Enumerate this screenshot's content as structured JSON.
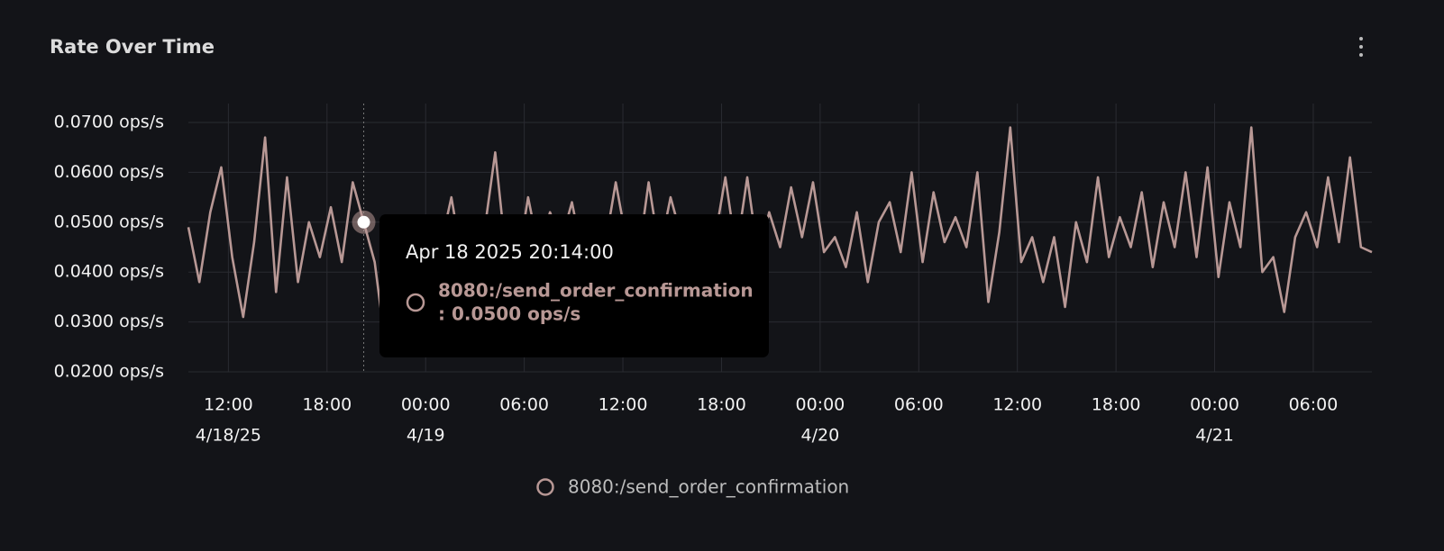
{
  "chart_data": {
    "type": "line",
    "title": "Rate Over Time",
    "x": [
      "2025-04-18T09:34",
      "2025-04-18T10:14",
      "2025-04-18T10:54",
      "2025-04-18T11:34",
      "2025-04-18T12:14",
      "2025-04-18T12:54",
      "2025-04-18T13:34",
      "2025-04-18T14:14",
      "2025-04-18T14:54",
      "2025-04-18T15:34",
      "2025-04-18T16:14",
      "2025-04-18T16:54",
      "2025-04-18T17:34",
      "2025-04-18T18:14",
      "2025-04-18T18:54",
      "2025-04-18T19:34",
      "2025-04-18T20:14",
      "2025-04-18T20:54",
      "2025-04-18T21:34",
      "2025-04-18T22:14",
      "2025-04-18T22:54",
      "2025-04-18T23:34",
      "2025-04-19T00:14",
      "2025-04-19T00:54",
      "2025-04-19T01:34",
      "2025-04-19T02:14",
      "2025-04-19T02:54",
      "2025-04-19T03:34",
      "2025-04-19T04:14",
      "2025-04-19T04:54",
      "2025-04-19T05:34",
      "2025-04-19T06:14",
      "2025-04-19T06:54",
      "2025-04-19T07:34",
      "2025-04-19T08:14",
      "2025-04-19T08:54",
      "2025-04-19T09:34",
      "2025-04-19T10:14",
      "2025-04-19T10:54",
      "2025-04-19T11:34",
      "2025-04-19T12:14",
      "2025-04-19T12:54",
      "2025-04-19T13:34",
      "2025-04-19T14:14",
      "2025-04-19T14:54",
      "2025-04-19T15:34",
      "2025-04-19T16:14",
      "2025-04-19T16:54",
      "2025-04-19T17:34",
      "2025-04-19T18:14",
      "2025-04-19T18:54",
      "2025-04-19T19:34",
      "2025-04-19T20:14",
      "2025-04-19T20:54",
      "2025-04-19T21:34",
      "2025-04-19T22:14",
      "2025-04-19T22:54",
      "2025-04-19T23:34",
      "2025-04-20T00:14",
      "2025-04-20T00:54",
      "2025-04-20T01:34",
      "2025-04-20T02:14",
      "2025-04-20T02:54",
      "2025-04-20T03:34",
      "2025-04-20T04:14",
      "2025-04-20T04:54",
      "2025-04-20T05:34",
      "2025-04-20T06:14",
      "2025-04-20T06:54",
      "2025-04-20T07:34",
      "2025-04-20T08:14",
      "2025-04-20T08:54",
      "2025-04-20T09:34",
      "2025-04-20T10:14",
      "2025-04-20T10:54",
      "2025-04-20T11:34",
      "2025-04-20T12:14",
      "2025-04-20T12:54",
      "2025-04-20T13:34",
      "2025-04-20T14:14",
      "2025-04-20T14:54",
      "2025-04-20T15:34",
      "2025-04-20T16:14",
      "2025-04-20T16:54",
      "2025-04-20T17:34",
      "2025-04-20T18:14",
      "2025-04-20T18:54",
      "2025-04-20T19:34",
      "2025-04-20T20:14",
      "2025-04-20T20:54",
      "2025-04-20T21:34",
      "2025-04-20T22:14",
      "2025-04-20T22:54",
      "2025-04-20T23:34",
      "2025-04-21T00:14",
      "2025-04-21T00:54",
      "2025-04-21T01:34",
      "2025-04-21T02:14",
      "2025-04-21T02:54",
      "2025-04-21T03:34",
      "2025-04-21T04:14",
      "2025-04-21T04:54",
      "2025-04-21T05:34",
      "2025-04-21T06:14",
      "2025-04-21T06:54",
      "2025-04-21T07:34",
      "2025-04-21T08:14",
      "2025-04-21T08:54",
      "2025-04-21T09:34"
    ],
    "series": [
      {
        "name": "8080:/send_order_confirmation",
        "color": "#b89895",
        "values": [
          0.049,
          0.038,
          0.052,
          0.061,
          0.043,
          0.031,
          0.046,
          0.067,
          0.036,
          0.059,
          0.038,
          0.05,
          0.043,
          0.053,
          0.042,
          0.058,
          0.05,
          0.042,
          0.025,
          0.043,
          0.047,
          0.04,
          0.048,
          0.045,
          0.055,
          0.042,
          0.038,
          0.048,
          0.064,
          0.043,
          0.041,
          0.055,
          0.044,
          0.052,
          0.046,
          0.054,
          0.043,
          0.047,
          0.045,
          0.058,
          0.046,
          0.042,
          0.058,
          0.044,
          0.055,
          0.047,
          0.043,
          0.05,
          0.046,
          0.059,
          0.044,
          0.059,
          0.043,
          0.052,
          0.045,
          0.057,
          0.047,
          0.058,
          0.044,
          0.047,
          0.041,
          0.052,
          0.038,
          0.05,
          0.054,
          0.044,
          0.06,
          0.042,
          0.056,
          0.046,
          0.051,
          0.045,
          0.06,
          0.034,
          0.048,
          0.069,
          0.042,
          0.047,
          0.038,
          0.047,
          0.033,
          0.05,
          0.042,
          0.059,
          0.043,
          0.051,
          0.045,
          0.056,
          0.041,
          0.054,
          0.045,
          0.06,
          0.043,
          0.061,
          0.039,
          0.054,
          0.045,
          0.069,
          0.04,
          0.043,
          0.032,
          0.047,
          0.052,
          0.045,
          0.059,
          0.046,
          0.063,
          0.045,
          0.044
        ]
      }
    ],
    "xlim": [
      "2025-04-18T09:34",
      "2025-04-21T09:34"
    ],
    "xticks": [
      {
        "value": "2025-04-18T12:00",
        "label": "12:00",
        "date": "4/18/25"
      },
      {
        "value": "2025-04-18T18:00",
        "label": "18:00"
      },
      {
        "value": "2025-04-19T00:00",
        "label": "00:00",
        "date": "4/19"
      },
      {
        "value": "2025-04-19T06:00",
        "label": "06:00"
      },
      {
        "value": "2025-04-19T12:00",
        "label": "12:00"
      },
      {
        "value": "2025-04-19T18:00",
        "label": "18:00"
      },
      {
        "value": "2025-04-20T00:00",
        "label": "00:00",
        "date": "4/20"
      },
      {
        "value": "2025-04-20T06:00",
        "label": "06:00"
      },
      {
        "value": "2025-04-20T12:00",
        "label": "12:00"
      },
      {
        "value": "2025-04-20T18:00",
        "label": "18:00"
      },
      {
        "value": "2025-04-21T00:00",
        "label": "00:00",
        "date": "4/21"
      },
      {
        "value": "2025-04-21T06:00",
        "label": "06:00"
      }
    ],
    "ylim": [
      0.02,
      0.07
    ],
    "yticks": [
      {
        "value": 0.02,
        "label": "0.0200 ops/s"
      },
      {
        "value": 0.03,
        "label": "0.0300 ops/s"
      },
      {
        "value": 0.04,
        "label": "0.0400 ops/s"
      },
      {
        "value": 0.05,
        "label": "0.0500 ops/s"
      },
      {
        "value": 0.06,
        "label": "0.0600 ops/s"
      },
      {
        "value": 0.07,
        "label": "0.0700 ops/s"
      }
    ],
    "grid": true,
    "tooltip": {
      "x": "2025-04-18T20:14",
      "title": "Apr 18 2025 20:14:00",
      "value": 0.05,
      "value_label": ": 0.0500 ops/s"
    }
  }
}
